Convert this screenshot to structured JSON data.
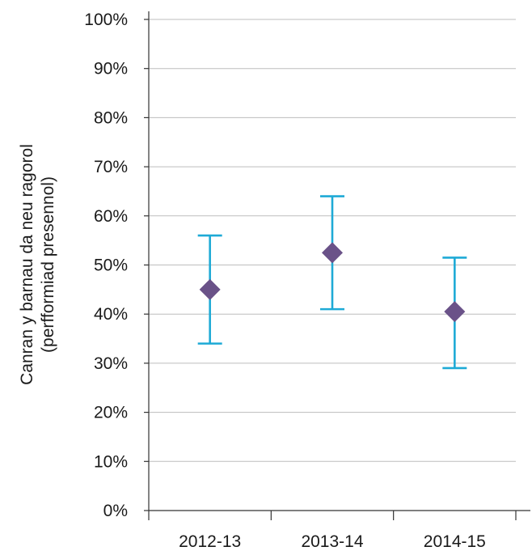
{
  "chart_data": {
    "type": "scatter",
    "subtype": "point-with-error-bars",
    "categories": [
      "2012-13",
      "2013-14",
      "2014-15"
    ],
    "series": [
      {
        "values": [
          45,
          52.5,
          40.5
        ],
        "lower": [
          34,
          41,
          29
        ],
        "upper": [
          56,
          64,
          51.5
        ]
      }
    ],
    "ylabel_lines": [
      "Canran y barnau da neu ragorol",
      "(perfformiad presennol)"
    ],
    "xlabel": "",
    "title": "",
    "ylim": [
      0,
      100
    ],
    "yticks": [
      0,
      10,
      20,
      30,
      40,
      50,
      60,
      70,
      80,
      90,
      100
    ],
    "ytick_labels": [
      "0%",
      "10%",
      "20%",
      "30%",
      "40%",
      "50%",
      "60%",
      "70%",
      "80%",
      "90%",
      "100%"
    ],
    "grid": true,
    "legend": "none",
    "colors": {
      "marker": "#6a5288",
      "error_bar": "#1eaad6",
      "grid": "#bdbdbd",
      "axis": "#333333",
      "text": "#1a1a1a"
    }
  }
}
